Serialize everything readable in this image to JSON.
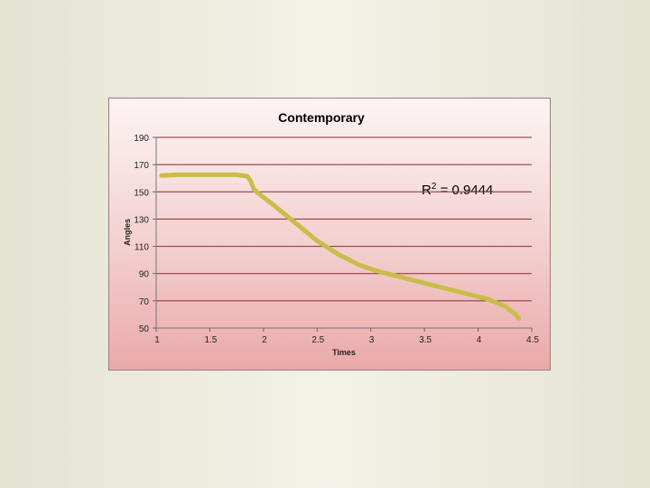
{
  "chart_data": {
    "type": "line",
    "title": "Contemporary",
    "xlabel": "Times",
    "ylabel": "Angles",
    "xlim": [
      1,
      4.5
    ],
    "ylim": [
      50,
      190
    ],
    "x_ticks": [
      "1",
      "1.5",
      "2",
      "2.5",
      "3",
      "3.5",
      "4",
      "4.5"
    ],
    "y_ticks": [
      "190",
      "170",
      "150",
      "130",
      "110",
      "90",
      "70",
      "50"
    ],
    "grid": true,
    "annotation": {
      "base": "R",
      "sup": "2",
      "rest": " = 0.9444"
    },
    "series": [
      {
        "color": "#c9bd4a",
        "x": [
          1.05,
          1.2,
          1.5,
          1.75,
          1.85,
          1.88,
          1.91,
          1.95,
          2.1,
          2.3,
          2.5,
          2.7,
          2.9,
          3.1,
          3.3,
          3.5,
          3.7,
          3.9,
          4.1,
          4.25,
          4.3,
          4.35,
          4.38
        ],
        "y": [
          162,
          162.5,
          162.5,
          162.5,
          161.5,
          158,
          152,
          149,
          140,
          127,
          114,
          104,
          96,
          91,
          87,
          83,
          79,
          75,
          71,
          66,
          63,
          60,
          57
        ]
      }
    ]
  }
}
